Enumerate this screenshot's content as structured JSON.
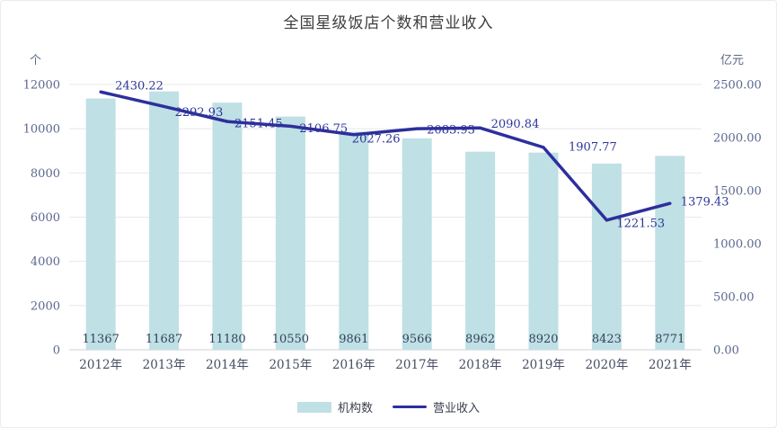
{
  "chart_data": {
    "type": "combo",
    "title": "全国星级饭店个数和营业收入",
    "categories": [
      "2012年",
      "2013年",
      "2014年",
      "2015年",
      "2016年",
      "2017年",
      "2018年",
      "2019年",
      "2020年",
      "2021年"
    ],
    "series": [
      {
        "name": "机构数",
        "type": "bar",
        "axis": "left",
        "values": [
          11367,
          11687,
          11180,
          10550,
          9861,
          9566,
          8962,
          8920,
          8423,
          8771
        ]
      },
      {
        "name": "营业收入",
        "type": "line",
        "axis": "right",
        "values": [
          2430.22,
          2292.93,
          2151.45,
          2106.75,
          2027.26,
          2083.93,
          2090.84,
          1907.77,
          1221.53,
          1379.43
        ]
      }
    ],
    "left_axis": {
      "unit": "个",
      "min": 0,
      "max": 12000,
      "step": 2000,
      "tick_labels": [
        "0",
        "2000",
        "4000",
        "6000",
        "8000",
        "10000",
        "12000"
      ]
    },
    "right_axis": {
      "unit": "亿元",
      "min": 0,
      "max": 2500,
      "step": 500,
      "decimals": 2,
      "tick_labels": [
        "0.00",
        "500.00",
        "1000.00",
        "1500.00",
        "2000.00",
        "2500.00"
      ]
    },
    "grid": true,
    "legend_position": "bottom",
    "colors": {
      "bar": "#bfe0e4",
      "line": "#2d2f9c",
      "line_label": "#2c3597",
      "bar_label": "#33415e",
      "tick_label": "#5a678f",
      "category_label": "#474e63",
      "gridline": "#e8e8e8",
      "axis_line": "#cdd1d8"
    }
  }
}
